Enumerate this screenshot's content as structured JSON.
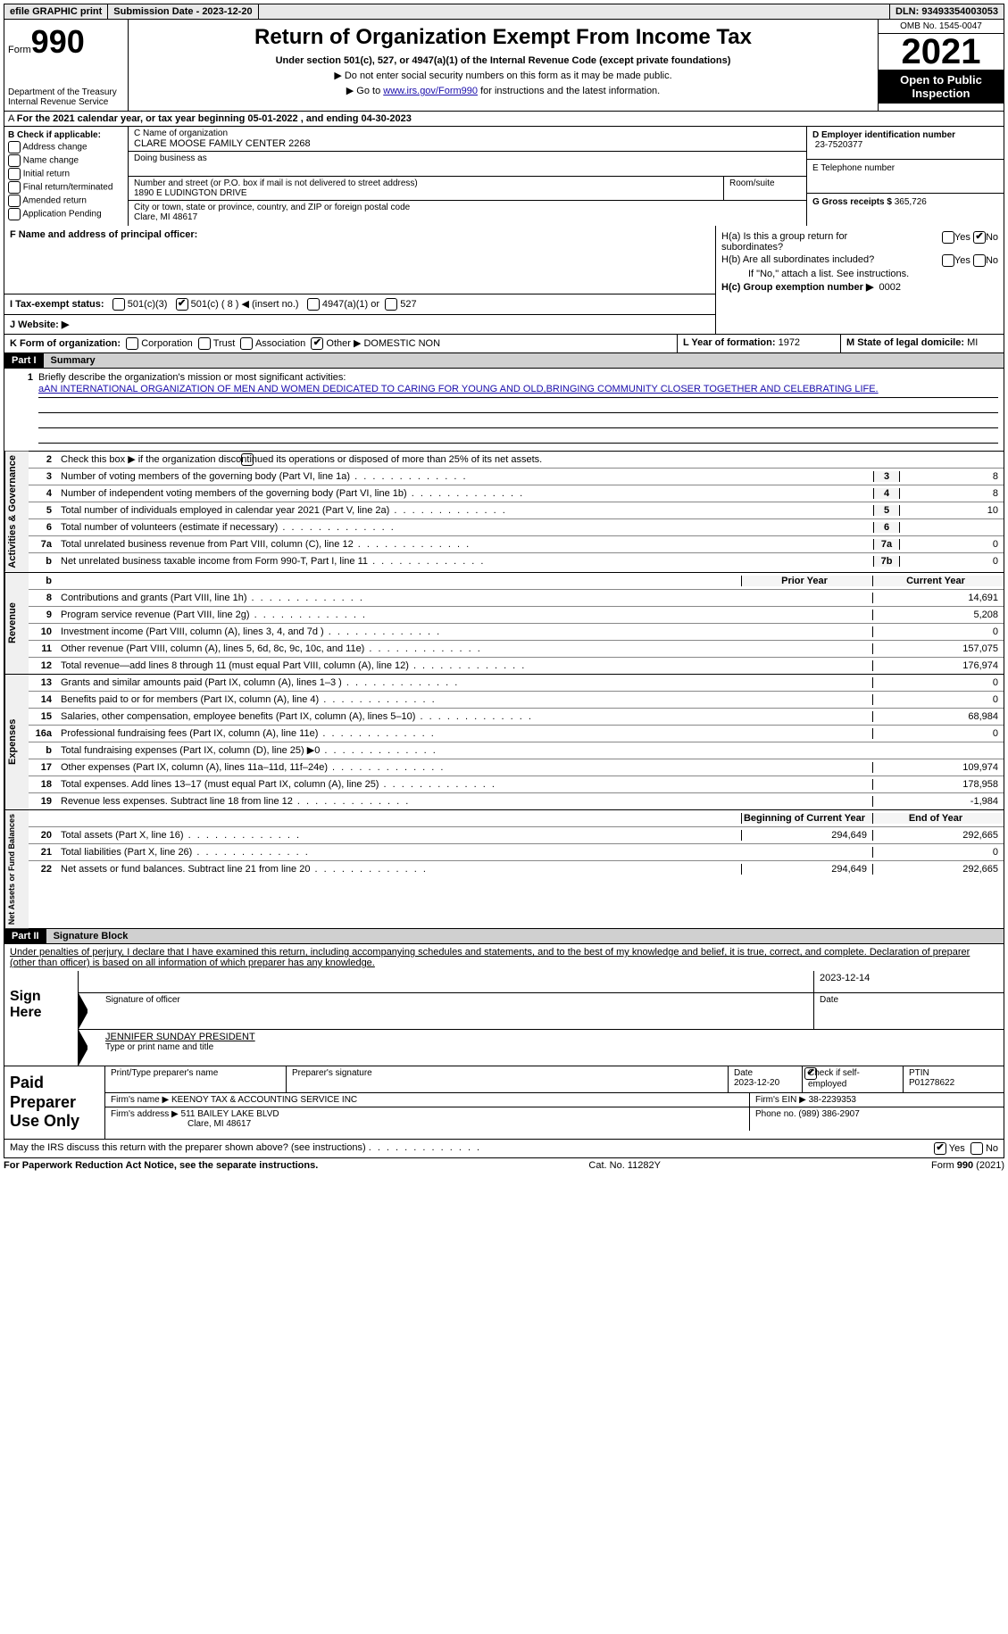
{
  "topbar": {
    "efile": "efile GRAPHIC print",
    "submission": "Submission Date - 2023-12-20",
    "dln": "DLN: 93493354003053"
  },
  "header": {
    "form_word": "Form",
    "form_num": "990",
    "dept": "Department of the Treasury Internal Revenue Service",
    "title": "Return of Organization Exempt From Income Tax",
    "subtitle": "Under section 501(c), 527, or 4947(a)(1) of the Internal Revenue Code (except private foundations)",
    "note1": "▶ Do not enter social security numbers on this form as it may be made public.",
    "note2_pre": "▶ Go to ",
    "note2_link": "www.irs.gov/Form990",
    "note2_post": " for instructions and the latest information.",
    "omb": "OMB No. 1545-0047",
    "year": "2021",
    "inspect": "Open to Public Inspection"
  },
  "calyear": "For the 2021 calendar year, or tax year beginning 05-01-2022   , and ending 04-30-2023",
  "B": {
    "label": "B Check if applicable:",
    "opts": [
      "Address change",
      "Name change",
      "Initial return",
      "Final return/terminated",
      "Amended return",
      "Application Pending"
    ]
  },
  "C": {
    "name_label": "C Name of organization",
    "name": "CLARE MOOSE FAMILY CENTER 2268",
    "dba_label": "Doing business as",
    "street_label": "Number and street (or P.O. box if mail is not delivered to street address)",
    "street": "1890 E LUDINGTON DRIVE",
    "room_label": "Room/suite",
    "city_label": "City or town, state or province, country, and ZIP or foreign postal code",
    "city": "Clare, MI  48617"
  },
  "D": {
    "ein_label": "D Employer identification number",
    "ein": "23-7520377",
    "phone_label": "E Telephone number",
    "gross_label": "G Gross receipts $",
    "gross": "365,726"
  },
  "F": {
    "label": "F  Name and address of principal officer:"
  },
  "H": {
    "ha_label": "H(a)  Is this a group return for subordinates?",
    "hb_label": "H(b)  Are all subordinates included?",
    "hb_note": "If \"No,\" attach a list. See instructions.",
    "hc_label": "H(c)  Group exemption number ▶",
    "hc_val": "0002",
    "yes": "Yes",
    "no": "No"
  },
  "I": {
    "label": "I   Tax-exempt status:",
    "opt1": "501(c)(3)",
    "opt2": "501(c) ( 8 ) ◀ (insert no.)",
    "opt3": "4947(a)(1) or",
    "opt4": "527"
  },
  "J": {
    "label": "J   Website: ▶"
  },
  "K": {
    "label": "K Form of organization:",
    "opts": [
      "Corporation",
      "Trust",
      "Association",
      "Other ▶"
    ],
    "other_val": "DOMESTIC NON"
  },
  "L": {
    "label": "L Year of formation:",
    "val": "1972"
  },
  "M": {
    "label": "M State of legal domicile:",
    "val": "MI"
  },
  "part1": {
    "header": "Part I",
    "title": "Summary",
    "l1_label": "Briefly describe the organization's mission or most significant activities:",
    "l1_text": "aAN INTERNATIONAL ORGANIZATION OF MEN AND WOMEN DEDICATED TO CARING FOR YOUNG AND OLD,BRINGING COMMUNITY CLOSER TOGETHER AND CELEBRATING LIFE.",
    "l2": "Check this box ▶       if the organization discontinued its operations or disposed of more than 25% of its net assets.",
    "lines_gov": [
      {
        "n": "3",
        "d": "Number of voting members of the governing body (Part VI, line 1a)",
        "box": "3",
        "v": "8"
      },
      {
        "n": "4",
        "d": "Number of independent voting members of the governing body (Part VI, line 1b)",
        "box": "4",
        "v": "8"
      },
      {
        "n": "5",
        "d": "Total number of individuals employed in calendar year 2021 (Part V, line 2a)",
        "box": "5",
        "v": "10"
      },
      {
        "n": "6",
        "d": "Total number of volunteers (estimate if necessary)",
        "box": "6",
        "v": ""
      },
      {
        "n": "7a",
        "d": "Total unrelated business revenue from Part VIII, column (C), line 12",
        "box": "7a",
        "v": "0"
      },
      {
        "n": "b",
        "d": "Net unrelated business taxable income from Form 990-T, Part I, line 11",
        "box": "7b",
        "v": "0"
      }
    ],
    "col_prior": "Prior Year",
    "col_current": "Current Year",
    "lines_rev": [
      {
        "n": "8",
        "d": "Contributions and grants (Part VIII, line 1h)",
        "cy": "14,691"
      },
      {
        "n": "9",
        "d": "Program service revenue (Part VIII, line 2g)",
        "cy": "5,208"
      },
      {
        "n": "10",
        "d": "Investment income (Part VIII, column (A), lines 3, 4, and 7d )",
        "cy": "0"
      },
      {
        "n": "11",
        "d": "Other revenue (Part VIII, column (A), lines 5, 6d, 8c, 9c, 10c, and 11e)",
        "cy": "157,075"
      },
      {
        "n": "12",
        "d": "Total revenue—add lines 8 through 11 (must equal Part VIII, column (A), line 12)",
        "cy": "176,974"
      }
    ],
    "lines_exp": [
      {
        "n": "13",
        "d": "Grants and similar amounts paid (Part IX, column (A), lines 1–3 )",
        "cy": "0"
      },
      {
        "n": "14",
        "d": "Benefits paid to or for members (Part IX, column (A), line 4)",
        "cy": "0"
      },
      {
        "n": "15",
        "d": "Salaries, other compensation, employee benefits (Part IX, column (A), lines 5–10)",
        "cy": "68,984"
      },
      {
        "n": "16a",
        "d": "Professional fundraising fees (Part IX, column (A), line 11e)",
        "cy": "0"
      },
      {
        "n": "b",
        "d": "Total fundraising expenses (Part IX, column (D), line 25) ▶0",
        "cy": "",
        "grey": true
      },
      {
        "n": "17",
        "d": "Other expenses (Part IX, column (A), lines 11a–11d, 11f–24e)",
        "cy": "109,974"
      },
      {
        "n": "18",
        "d": "Total expenses. Add lines 13–17 (must equal Part IX, column (A), line 25)",
        "cy": "178,958"
      },
      {
        "n": "19",
        "d": "Revenue less expenses. Subtract line 18 from line 12",
        "cy": "-1,984"
      }
    ],
    "col_begin": "Beginning of Current Year",
    "col_end": "End of Year",
    "lines_net": [
      {
        "n": "20",
        "d": "Total assets (Part X, line 16)",
        "py": "294,649",
        "cy": "292,665"
      },
      {
        "n": "21",
        "d": "Total liabilities (Part X, line 26)",
        "py": "",
        "cy": "0"
      },
      {
        "n": "22",
        "d": "Net assets or fund balances. Subtract line 21 from line 20",
        "py": "294,649",
        "cy": "292,665"
      }
    ]
  },
  "part2": {
    "header": "Part II",
    "title": "Signature Block",
    "decl": "Under penalties of perjury, I declare that I have examined this return, including accompanying schedules and statements, and to the best of my knowledge and belief, it is true, correct, and complete. Declaration of preparer (other than officer) is based on all information of which preparer has any knowledge.",
    "sign_here": "Sign Here",
    "sig_officer": "Signature of officer",
    "date": "Date",
    "sig_date": "2023-12-14",
    "name_title": "JENNIFER SUNDAY PRESIDENT",
    "name_label": "Type or print name and title"
  },
  "prep": {
    "title": "Paid Preparer Use Only",
    "h1": "Print/Type preparer's name",
    "h2": "Preparer's signature",
    "h3": "Date",
    "h3v": "2023-12-20",
    "h4": "Check        if self-employed",
    "h5": "PTIN",
    "h5v": "P01278622",
    "firm_name_l": "Firm's name    ▶",
    "firm_name": "KEENOY TAX & ACCOUNTING SERVICE INC",
    "firm_ein_l": "Firm's EIN ▶",
    "firm_ein": "38-2239353",
    "firm_addr_l": "Firm's address ▶",
    "firm_addr1": "511 BAILEY LAKE BLVD",
    "firm_addr2": "Clare, MI  48617",
    "phone_l": "Phone no.",
    "phone": "(989) 386-2907"
  },
  "may_discuss": "May the IRS discuss this return with the preparer shown above? (see instructions)",
  "footer": {
    "left": "For Paperwork Reduction Act Notice, see the separate instructions.",
    "mid": "Cat. No. 11282Y",
    "right": "Form 990 (2021)"
  }
}
